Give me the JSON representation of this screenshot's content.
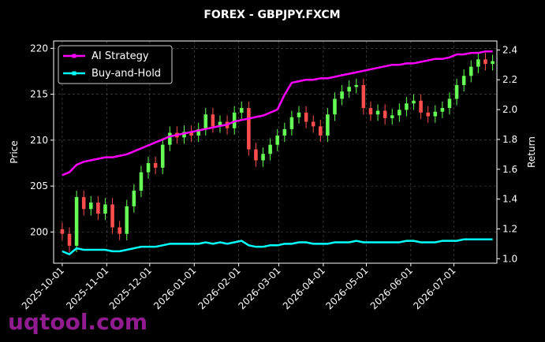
{
  "chart_data": {
    "type": "candlestick",
    "title": "FOREX - GBPJPY.FXCM",
    "ylabel": "Price",
    "y2label": "Return",
    "watermark": "uqtool.com",
    "x": [
      "2025-10-01",
      "2025-10-06",
      "2025-10-11",
      "2025-10-16",
      "2025-10-21",
      "2025-10-26",
      "2025-10-31",
      "2025-11-05",
      "2025-11-10",
      "2025-11-15",
      "2025-11-20",
      "2025-11-25",
      "2025-11-30",
      "2025-12-05",
      "2025-12-10",
      "2025-12-15",
      "2025-12-20",
      "2025-12-25",
      "2025-12-30",
      "2026-01-04",
      "2026-01-09",
      "2026-01-14",
      "2026-01-19",
      "2026-01-24",
      "2026-01-29",
      "2026-02-03",
      "2026-02-08",
      "2026-02-13",
      "2026-02-18",
      "2026-02-23",
      "2026-02-28",
      "2026-03-05",
      "2026-03-10",
      "2026-03-15",
      "2026-03-20",
      "2026-03-25",
      "2026-03-30",
      "2026-04-04",
      "2026-04-09",
      "2026-04-14",
      "2026-04-19",
      "2026-04-24",
      "2026-04-29",
      "2026-05-04",
      "2026-05-09",
      "2026-05-14",
      "2026-05-19",
      "2026-05-24",
      "2026-05-29",
      "2026-06-03",
      "2026-06-08",
      "2026-06-13",
      "2026-06-18",
      "2026-06-23",
      "2026-06-28",
      "2026-07-03",
      "2026-07-08",
      "2026-07-13",
      "2026-07-18",
      "2026-07-23",
      "2026-07-28"
    ],
    "open": [
      200.3,
      199.8,
      198.5,
      203.8,
      202.5,
      203.2,
      202.0,
      203.0,
      200.5,
      199.8,
      202.8,
      204.5,
      206.5,
      207.5,
      207.0,
      209.5,
      210.8,
      210.3,
      210.9,
      210.5,
      211.2,
      212.8,
      211.5,
      212.0,
      211.3,
      213.0,
      213.5,
      209.0,
      207.8,
      208.5,
      209.5,
      210.5,
      211.2,
      212.5,
      213.0,
      212.0,
      211.5,
      210.5,
      212.8,
      214.5,
      215.3,
      215.8,
      216.0,
      213.5,
      212.8,
      213.2,
      212.4,
      212.7,
      213.3,
      214.0,
      214.3,
      213.0,
      212.6,
      213.1,
      213.5,
      214.5,
      216.0,
      217.0,
      218.0,
      218.8,
      218.3
    ],
    "high": [
      201.0,
      200.5,
      204.5,
      204.5,
      203.9,
      203.9,
      203.7,
      203.7,
      201.2,
      203.5,
      205.2,
      207.2,
      208.2,
      208.2,
      210.2,
      211.5,
      211.5,
      211.6,
      211.6,
      211.9,
      213.5,
      213.5,
      212.7,
      212.7,
      213.7,
      214.2,
      214.2,
      209.7,
      209.2,
      210.2,
      211.2,
      211.9,
      213.2,
      213.7,
      213.7,
      212.7,
      212.2,
      213.5,
      215.2,
      216.0,
      216.5,
      216.7,
      216.7,
      214.2,
      213.9,
      213.9,
      213.4,
      214.0,
      214.7,
      215.0,
      215.0,
      213.7,
      213.8,
      214.2,
      215.2,
      216.7,
      217.7,
      218.7,
      219.5,
      219.5,
      219.3
    ],
    "low": [
      199.1,
      197.8,
      197.8,
      201.8,
      201.8,
      201.3,
      201.3,
      199.8,
      199.1,
      199.1,
      202.1,
      203.8,
      205.8,
      206.3,
      206.3,
      208.8,
      209.6,
      209.6,
      209.8,
      209.8,
      210.5,
      210.8,
      210.8,
      210.6,
      210.6,
      212.3,
      208.3,
      207.1,
      207.1,
      207.8,
      208.8,
      209.8,
      210.5,
      211.8,
      211.3,
      210.8,
      209.8,
      209.8,
      212.1,
      213.8,
      214.6,
      215.1,
      212.8,
      212.1,
      212.1,
      211.7,
      211.7,
      212.0,
      212.6,
      213.3,
      212.3,
      211.9,
      211.9,
      212.4,
      212.8,
      213.8,
      215.3,
      216.3,
      217.3,
      217.6,
      217.6
    ],
    "close": [
      199.8,
      198.5,
      203.8,
      202.5,
      203.2,
      202.0,
      203.0,
      200.5,
      199.8,
      202.8,
      204.5,
      206.5,
      207.5,
      207.0,
      209.5,
      210.8,
      210.3,
      210.9,
      210.5,
      211.2,
      212.8,
      211.5,
      212.0,
      211.3,
      213.0,
      213.5,
      209.0,
      207.8,
      208.5,
      209.5,
      210.5,
      211.2,
      212.5,
      213.0,
      212.0,
      211.5,
      210.5,
      212.8,
      214.5,
      215.3,
      215.8,
      216.0,
      213.5,
      212.8,
      213.2,
      212.4,
      212.7,
      213.3,
      214.0,
      214.3,
      213.0,
      212.6,
      213.1,
      213.5,
      214.5,
      216.0,
      217.0,
      218.0,
      218.8,
      218.3,
      218.6
    ],
    "up_color": "#66ff55",
    "down_color": "#ff4d4d",
    "series": [
      {
        "name": "AI Strategy",
        "color": "#ff00ff",
        "axis": "y2",
        "values": [
          1.56,
          1.58,
          1.63,
          1.65,
          1.66,
          1.67,
          1.68,
          1.68,
          1.69,
          1.7,
          1.72,
          1.74,
          1.76,
          1.78,
          1.8,
          1.82,
          1.83,
          1.84,
          1.85,
          1.86,
          1.87,
          1.88,
          1.89,
          1.9,
          1.92,
          1.93,
          1.94,
          1.95,
          1.96,
          1.98,
          2.0,
          2.1,
          2.18,
          2.19,
          2.2,
          2.2,
          2.21,
          2.21,
          2.22,
          2.23,
          2.24,
          2.25,
          2.26,
          2.27,
          2.28,
          2.29,
          2.3,
          2.3,
          2.31,
          2.31,
          2.32,
          2.33,
          2.34,
          2.34,
          2.35,
          2.37,
          2.37,
          2.38,
          2.38,
          2.39,
          2.39
        ]
      },
      {
        "name": "Buy-and-Hold",
        "color": "#00ffff",
        "axis": "y2",
        "values": [
          1.05,
          1.03,
          1.07,
          1.06,
          1.06,
          1.06,
          1.06,
          1.05,
          1.05,
          1.06,
          1.07,
          1.08,
          1.08,
          1.08,
          1.09,
          1.1,
          1.1,
          1.1,
          1.1,
          1.1,
          1.11,
          1.1,
          1.11,
          1.1,
          1.11,
          1.12,
          1.09,
          1.08,
          1.08,
          1.09,
          1.09,
          1.1,
          1.1,
          1.11,
          1.11,
          1.1,
          1.1,
          1.1,
          1.11,
          1.11,
          1.11,
          1.12,
          1.11,
          1.11,
          1.11,
          1.11,
          1.11,
          1.11,
          1.12,
          1.12,
          1.11,
          1.11,
          1.11,
          1.12,
          1.12,
          1.12,
          1.13,
          1.13,
          1.13,
          1.13,
          1.13
        ]
      }
    ],
    "xlim": [
      "2025-09-25",
      "2026-07-31"
    ],
    "xticks": [
      "2025-10-01",
      "2025-11-01",
      "2025-12-01",
      "2026-01-01",
      "2026-02-01",
      "2026-03-01",
      "2026-04-01",
      "2026-05-01",
      "2026-06-01",
      "2026-07-01"
    ],
    "ylim": [
      196.6,
      220.8
    ],
    "yticks": [
      200,
      205,
      210,
      215,
      220
    ],
    "y2lim": [
      0.97,
      2.46
    ],
    "y2ticks": [
      {
        "value": 1,
        "label": "1.0"
      },
      1.2,
      1.4,
      1.6,
      1.8,
      {
        "value": 2,
        "label": "2.0"
      },
      2.2,
      2.4
    ],
    "grid": true,
    "legend": "upper left"
  }
}
